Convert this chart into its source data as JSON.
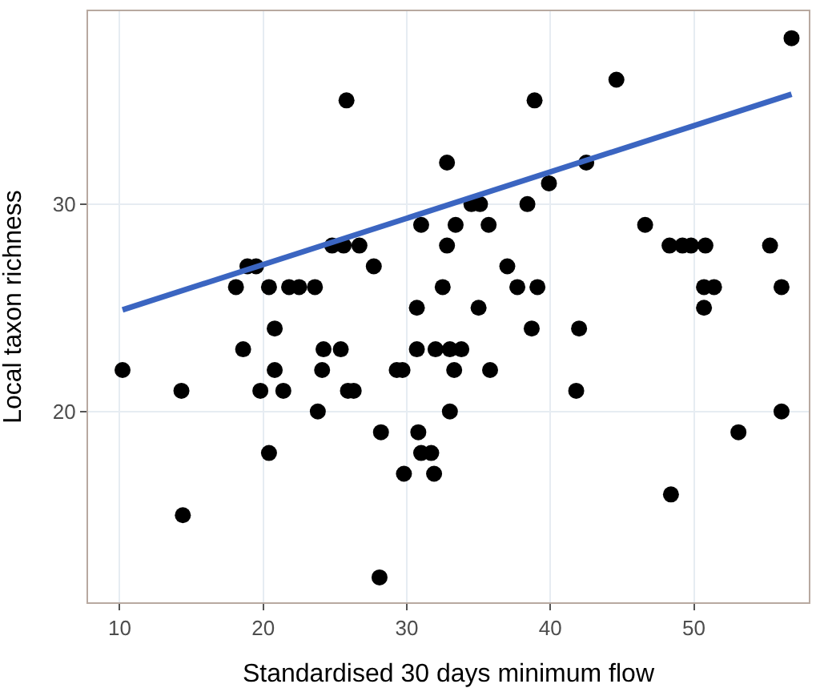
{
  "chart_data": {
    "type": "scatter",
    "xlabel": "Standardised 30 days minimum flow",
    "ylabel": "Local taxon richness",
    "xlim": [
      7.8,
      58.0
    ],
    "ylim": [
      10.8,
      39.3
    ],
    "xticks": [
      10,
      20,
      30,
      40,
      50
    ],
    "yticks": [
      20,
      30
    ],
    "grid": true,
    "marker": "circle",
    "series": [
      {
        "color": "#000000",
        "x": [
          56.8,
          44.6,
          38.9,
          25.8,
          32.8,
          42.5,
          39.9,
          34.5,
          35.1,
          38.4,
          33.4,
          35.7,
          46.6,
          31.0,
          32.8,
          48.3,
          49.2,
          49.8,
          50.8,
          55.3,
          24.8,
          25.6,
          26.7,
          37.0,
          18.9,
          19.5,
          27.7,
          32.5,
          37.7,
          39.1,
          50.7,
          51.4,
          56.1,
          18.1,
          20.4,
          21.8,
          22.5,
          23.6,
          35.0,
          50.7,
          30.7,
          20.8,
          38.7,
          42.0,
          18.6,
          24.2,
          25.4,
          30.7,
          32.0,
          33.0,
          33.8,
          10.2,
          20.8,
          24.1,
          29.3,
          29.7,
          33.3,
          35.8,
          14.3,
          19.8,
          21.4,
          25.9,
          26.3,
          41.8,
          23.8,
          33.0,
          56.1,
          28.2,
          30.8,
          53.1,
          20.4,
          31.0,
          31.7,
          29.8,
          31.9,
          48.4,
          14.4,
          28.1
        ],
        "values": [
          38,
          36,
          35,
          35,
          32,
          32,
          31,
          30,
          30,
          30,
          29,
          29,
          29,
          29,
          28,
          28,
          28,
          28,
          28,
          28,
          28,
          28,
          28,
          27,
          27,
          27,
          27,
          26,
          26,
          26,
          26,
          26,
          26,
          26,
          26,
          26,
          26,
          26,
          25,
          25,
          25,
          24,
          24,
          24,
          23,
          23,
          23,
          23,
          23,
          23,
          23,
          22,
          22,
          22,
          22,
          22,
          22,
          22,
          21,
          21,
          21,
          21,
          21,
          21,
          20,
          20,
          20,
          19,
          19,
          19,
          18,
          18,
          18,
          17,
          17,
          16,
          15,
          12
        ]
      },
      {
        "type": "line",
        "color": "#3b65c1",
        "marker": "none",
        "line_style": "solid",
        "x": [
          10.2,
          56.8
        ],
        "values": [
          24.9,
          35.3
        ]
      }
    ]
  }
}
